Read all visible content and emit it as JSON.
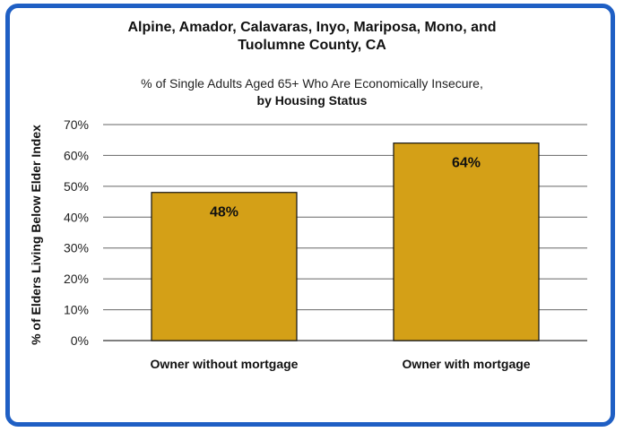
{
  "chart_data": {
    "type": "bar",
    "title_line1": "Alpine, Amador, Calavaras, Inyo, Mariposa, Mono, and",
    "title_line2": "Tuolumne County, CA",
    "subtitle_line1": "% of Single Adults Aged 65+ Who Are Economically Insecure,",
    "subtitle_line2": "by Housing Status",
    "ylabel": "% of  Elders Living Below  Elder Index",
    "categories": [
      "Owner without mortgage",
      "Owner with mortgage"
    ],
    "values": [
      48,
      64
    ],
    "data_labels": [
      "48%",
      "64%"
    ],
    "ylim": [
      0,
      70
    ],
    "yticks": [
      "0%",
      "10%",
      "20%",
      "30%",
      "40%",
      "50%",
      "60%",
      "70%"
    ],
    "grid": true,
    "bar_color": "#d4a017",
    "frame_color": "#1f5fc4"
  }
}
